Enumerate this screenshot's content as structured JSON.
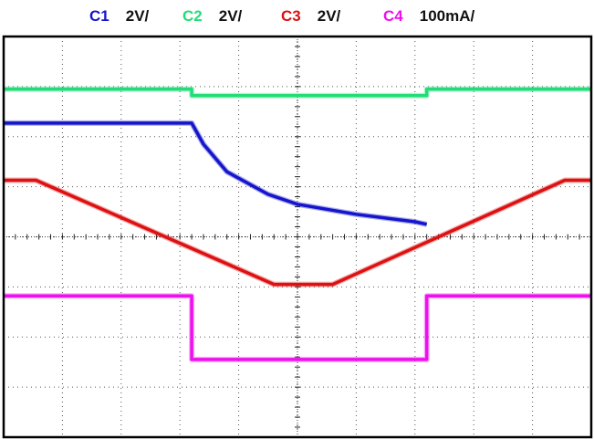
{
  "chart_data": {
    "type": "line",
    "title": "",
    "xlabel": "",
    "ylabel": "",
    "grid": true,
    "legend_position": "top",
    "x_divisions": 10,
    "y_divisions": 8,
    "x_range": [
      0,
      10
    ],
    "y_range": [
      -4,
      4
    ],
    "series": [
      {
        "name": "C1",
        "scale": "2V/",
        "color": "#1515cc",
        "x": [
          0,
          3.2,
          3.4,
          3.8,
          4.5,
          5.0,
          6.0,
          7.0,
          7.2
        ],
        "y": [
          2.27,
          2.27,
          1.85,
          1.3,
          0.85,
          0.65,
          0.45,
          0.3,
          0.25
        ]
      },
      {
        "name": "C2",
        "scale": "2V/",
        "color": "#22dd77",
        "x": [
          0,
          3.2,
          3.2,
          7.2,
          7.2,
          10
        ],
        "y": [
          2.95,
          2.95,
          2.82,
          2.82,
          2.95,
          2.95
        ]
      },
      {
        "name": "C3",
        "scale": "2V/",
        "color": "#dd1111",
        "x": [
          0,
          0.55,
          4.6,
          5.6,
          9.55,
          10
        ],
        "y": [
          1.13,
          1.13,
          -0.95,
          -0.95,
          1.13,
          1.13
        ]
      },
      {
        "name": "C4",
        "scale": "100mA/",
        "color": "#ee11ee",
        "x": [
          0,
          3.2,
          3.2,
          7.2,
          7.2,
          10
        ],
        "y": [
          -1.18,
          -1.18,
          -2.45,
          -2.45,
          -1.18,
          -1.18
        ]
      }
    ]
  }
}
